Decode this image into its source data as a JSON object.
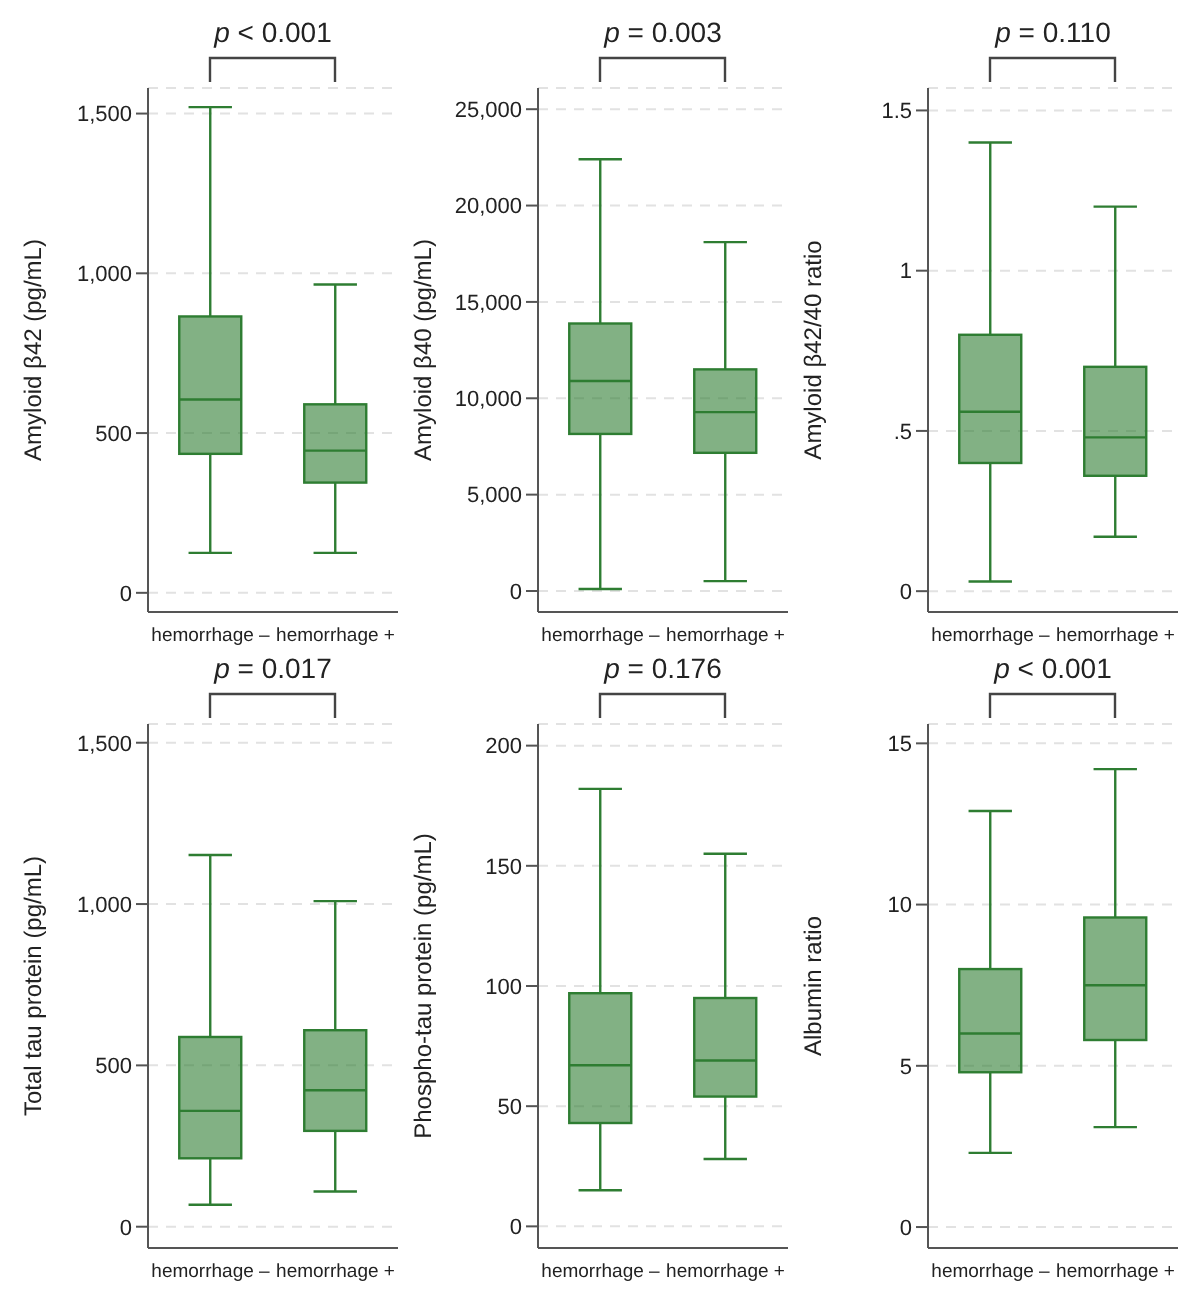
{
  "chart_data": [
    {
      "type": "box",
      "ylabel": "Amyloid β42 (pg/mL)",
      "categories": [
        "hemorrhage –",
        "hemorrhage +"
      ],
      "color": "#2e7d32",
      "grid": "y",
      "annotations": [
        "p < 0.001"
      ],
      "ylim": [
        -60,
        1580
      ],
      "yticks": [
        0,
        500,
        {
          "value": 1000,
          "label": "1,000"
        },
        {
          "value": 1500,
          "label": "1,500"
        }
      ],
      "boxes": [
        {
          "low": 125,
          "q1": 435,
          "median": 605,
          "q3": 865,
          "high": 1520
        },
        {
          "low": 125,
          "q1": 345,
          "median": 445,
          "q3": 590,
          "high": 965
        }
      ]
    },
    {
      "type": "box",
      "ylabel": "Amyloid β40 (pg/mL)",
      "categories": [
        "hemorrhage –",
        "hemorrhage +"
      ],
      "color": "#2e7d32",
      "grid": "y",
      "annotations": [
        "p = 0.003"
      ],
      "ylim": [
        -1090,
        26100
      ],
      "yticks": [
        0,
        {
          "value": 5000,
          "label": "5,000"
        },
        {
          "value": 10000,
          "label": "10,000"
        },
        {
          "value": 15000,
          "label": "15,000"
        },
        {
          "value": 20000,
          "label": "20,000"
        },
        {
          "value": 25000,
          "label": "25,000"
        }
      ],
      "boxes": [
        {
          "low": 100,
          "q1": 8150,
          "median": 10900,
          "q3": 13880,
          "high": 22400
        },
        {
          "low": 510,
          "q1": 7170,
          "median": 9280,
          "q3": 11500,
          "high": 18100
        }
      ]
    },
    {
      "type": "box",
      "ylabel": "Amyloid β42/40 ratio",
      "categories": [
        "hemorrhage –",
        "hemorrhage +"
      ],
      "color": "#2e7d32",
      "grid": "y",
      "annotations": [
        "p = 0.110"
      ],
      "ylim": [
        -0.065,
        1.57
      ],
      "yticks": [
        0,
        {
          "value": 0.5,
          "label": ".5"
        },
        1,
        1.5
      ],
      "boxes": [
        {
          "low": 0.03,
          "q1": 0.4,
          "median": 0.56,
          "q3": 0.8,
          "high": 1.4
        },
        {
          "low": 0.17,
          "q1": 0.36,
          "median": 0.48,
          "q3": 0.7,
          "high": 1.2
        }
      ]
    },
    {
      "type": "box",
      "ylabel": "Total tau protein (pg/mL)",
      "categories": [
        "hemorrhage –",
        "hemorrhage +"
      ],
      "color": "#2e7d32",
      "grid": "y",
      "annotations": [
        "p = 0.017"
      ],
      "ylim": [
        -66,
        1558
      ],
      "yticks": [
        0,
        500,
        {
          "value": 1000,
          "label": "1,000"
        },
        {
          "value": 1500,
          "label": "1,500"
        }
      ],
      "boxes": [
        {
          "low": 68,
          "q1": 212,
          "median": 359,
          "q3": 588,
          "high": 1152
        },
        {
          "low": 109,
          "q1": 297,
          "median": 423,
          "q3": 609,
          "high": 1009
        }
      ]
    },
    {
      "type": "box",
      "ylabel": "Phospho-tau protein (pg/mL)",
      "categories": [
        "hemorrhage –",
        "hemorrhage +"
      ],
      "color": "#2e7d32",
      "grid": "y",
      "annotations": [
        "p = 0.176"
      ],
      "ylim": [
        -9,
        209
      ],
      "yticks": [
        0,
        50,
        100,
        150,
        200
      ],
      "boxes": [
        {
          "low": 15,
          "q1": 43,
          "median": 67,
          "q3": 97,
          "high": 182
        },
        {
          "low": 28,
          "q1": 54,
          "median": 69,
          "q3": 95,
          "high": 155
        }
      ]
    },
    {
      "type": "box",
      "ylabel": "Albumin ratio",
      "categories": [
        "hemorrhage –",
        "hemorrhage +"
      ],
      "color": "#2e7d32",
      "grid": "y",
      "annotations": [
        "p < 0.001"
      ],
      "ylim": [
        -0.65,
        15.6
      ],
      "yticks": [
        0,
        5,
        10,
        15
      ],
      "boxes": [
        {
          "low": 2.3,
          "q1": 4.8,
          "median": 6.0,
          "q3": 8.0,
          "high": 12.9
        },
        {
          "low": 3.1,
          "q1": 5.8,
          "median": 7.5,
          "q3": 9.6,
          "high": 14.2
        }
      ]
    }
  ]
}
